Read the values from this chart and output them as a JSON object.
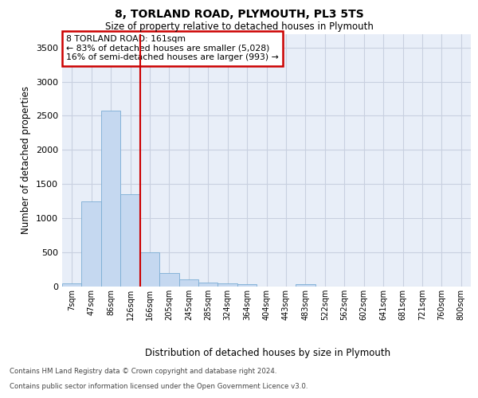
{
  "title1": "8, TORLAND ROAD, PLYMOUTH, PL3 5TS",
  "title2": "Size of property relative to detached houses in Plymouth",
  "xlabel": "Distribution of detached houses by size in Plymouth",
  "ylabel": "Number of detached properties",
  "bar_labels": [
    "7sqm",
    "47sqm",
    "86sqm",
    "126sqm",
    "166sqm",
    "205sqm",
    "245sqm",
    "285sqm",
    "324sqm",
    "364sqm",
    "404sqm",
    "443sqm",
    "483sqm",
    "522sqm",
    "562sqm",
    "602sqm",
    "641sqm",
    "681sqm",
    "721sqm",
    "760sqm",
    "800sqm"
  ],
  "bar_values": [
    50,
    1250,
    2580,
    1350,
    500,
    200,
    110,
    55,
    45,
    30,
    0,
    0,
    30,
    0,
    0,
    0,
    0,
    0,
    0,
    0,
    0
  ],
  "bar_color": "#c5d8f0",
  "bar_edge_color": "#7badd4",
  "vline_color": "#cc0000",
  "vline_pos": 3.5,
  "annotation_line1": "8 TORLAND ROAD: 161sqm",
  "annotation_line2": "← 83% of detached houses are smaller (5,028)",
  "annotation_line3": "16% of semi-detached houses are larger (993) →",
  "ylim": [
    0,
    3700
  ],
  "yticks": [
    0,
    500,
    1000,
    1500,
    2000,
    2500,
    3000,
    3500
  ],
  "bg_color": "#e8eef8",
  "grid_color": "#c8d0e0",
  "footer1": "Contains HM Land Registry data © Crown copyright and database right 2024.",
  "footer2": "Contains public sector information licensed under the Open Government Licence v3.0."
}
